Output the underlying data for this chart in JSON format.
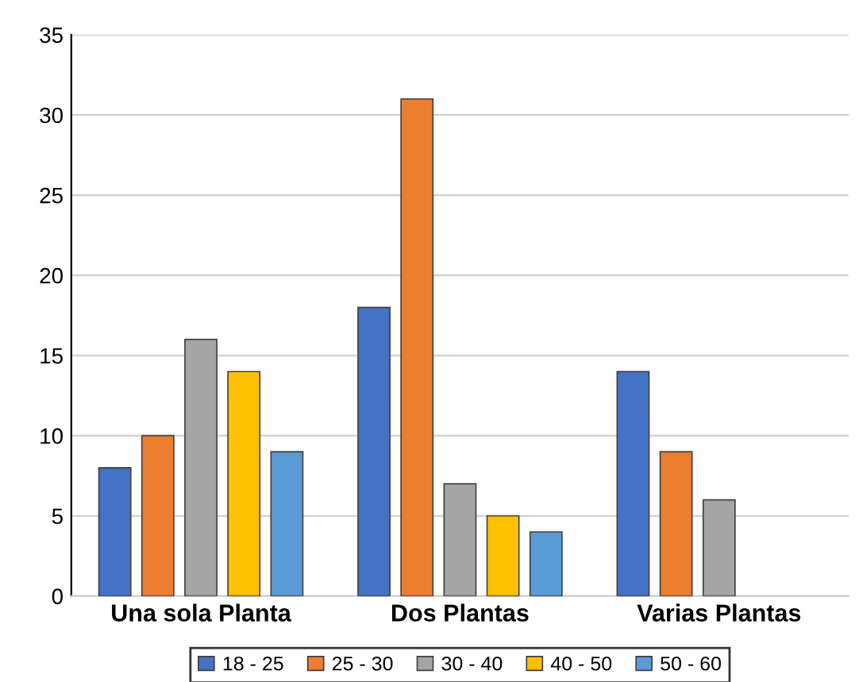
{
  "chart_data": {
    "type": "bar",
    "categories": [
      "Una sola Planta",
      "Dos Plantas",
      "Varias Plantas"
    ],
    "series": [
      {
        "name": "18 - 25",
        "color": "#4472c4",
        "values": [
          8,
          18,
          14
        ]
      },
      {
        "name": "25 - 30",
        "color": "#ed7d31",
        "values": [
          10,
          31,
          9
        ]
      },
      {
        "name": "30 - 40",
        "color": "#a5a5a5",
        "values": [
          16,
          7,
          6
        ]
      },
      {
        "name": "40 - 50",
        "color": "#ffc000",
        "values": [
          14,
          5,
          null
        ]
      },
      {
        "name": "50 - 60",
        "color": "#5b9bd5",
        "values": [
          9,
          4,
          null
        ]
      }
    ],
    "ylim": [
      0,
      35
    ],
    "yticks": [
      0,
      5,
      10,
      15,
      20,
      25,
      30,
      35
    ],
    "grid": "y",
    "legend": "bottom"
  }
}
